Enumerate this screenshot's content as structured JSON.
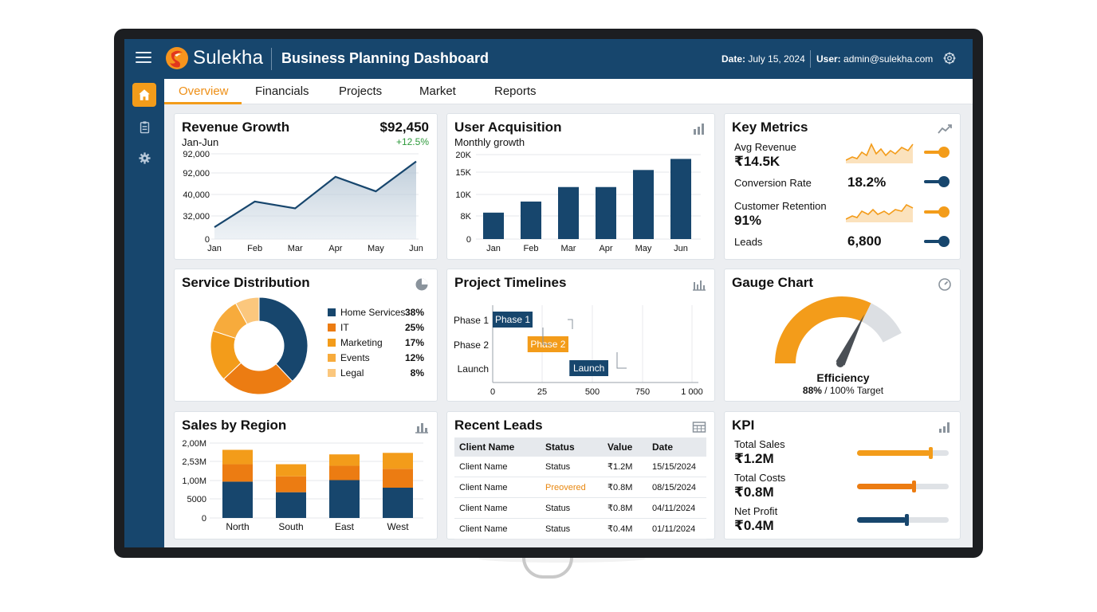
{
  "header": {
    "brand": "Sulekha",
    "title": "Business Planning Dashboard",
    "date_label": "Date:",
    "date_value": "July 15, 2024",
    "user_label": "User:",
    "user_value": "admin@sulekha.com",
    "brand_colors": [
      "#f7941d",
      "#e2371c"
    ]
  },
  "sidebar": {
    "items": [
      {
        "name": "home",
        "icon": "home-icon",
        "active": true
      },
      {
        "name": "reports",
        "icon": "clipboard-icon",
        "active": false
      },
      {
        "name": "settings",
        "icon": "gear-icon",
        "active": false
      }
    ]
  },
  "tabs": [
    "Overview",
    "Financials",
    "Projects",
    "Market",
    "Reports"
  ],
  "active_tab": "Overview",
  "revenue": {
    "title": "Revenue Growth",
    "subtitle": "Jan-Jun",
    "total": "$92,450",
    "change": "+12.5%"
  },
  "acquisition": {
    "title": "User Acquisition",
    "subtitle": "Monthly growth"
  },
  "key_metrics": {
    "title": "Key Metrics",
    "items": [
      {
        "label": "Avg Revenue",
        "value": "₹14.5K",
        "color": "#f39c1a"
      },
      {
        "label": "Conversion Rate",
        "value": "18.2%",
        "color": "#17466d"
      },
      {
        "label": "Customer Retention",
        "value": "91%",
        "color": "#f39c1a"
      },
      {
        "label": "Leads",
        "value": "6,800",
        "color": "#17466d"
      }
    ]
  },
  "service": {
    "title": "Service Distribution"
  },
  "timelines": {
    "title": "Project Timelines"
  },
  "gauge": {
    "title": "Gauge Chart",
    "label": "Efficiency",
    "value_text": "88%",
    "target_text": " / 100% Target",
    "value": 88,
    "max": 100
  },
  "sales_region": {
    "title": "Sales by Region"
  },
  "leads": {
    "title": "Recent Leads",
    "columns": [
      "Client Name",
      "Status",
      "Value",
      "Date"
    ],
    "rows": [
      {
        "client": "Client Name",
        "status": "Status",
        "value": "₹1.2M",
        "date": "15/15/2024"
      },
      {
        "client": "Client Name",
        "status": "Preovered",
        "value": "₹0.8M",
        "date": "08/15/2024"
      },
      {
        "client": "Client Name",
        "status": "Status",
        "value": "₹0.8M",
        "date": "04/11/2024"
      },
      {
        "client": "Client Name",
        "status": "Status",
        "value": "₹0.4M",
        "date": "01/11/2024"
      }
    ],
    "highlight_status_color": "#e8870f"
  },
  "kpi": {
    "title": "KPI",
    "items": [
      {
        "label": "Total Sales",
        "value": "₹1.2M",
        "level": 0.8,
        "color": "#f39c1a"
      },
      {
        "label": "Total Costs",
        "value": "₹0.8M",
        "level": 0.62,
        "color": "#ec7c12"
      },
      {
        "label": "Net Profit",
        "value": "₹0.4M",
        "level": 0.54,
        "color": "#17466d"
      }
    ]
  },
  "chart_data": [
    {
      "type": "area",
      "categories": [
        "Jan",
        "Feb",
        "Mar",
        "Apr",
        "May",
        "Jun"
      ],
      "y_tick_labels": [
        "0",
        "32,000",
        "40,000",
        "92,000",
        "92,000"
      ],
      "values_fraction_of_axis": [
        0.14,
        0.44,
        0.36,
        0.73,
        0.56,
        0.91
      ],
      "color": "#17466d"
    },
    {
      "type": "bar",
      "categories": [
        "Jan",
        "Feb",
        "Mar",
        "Apr",
        "May",
        "Jun"
      ],
      "y_tick_labels": [
        "0",
        "8K",
        "10K",
        "15K",
        "20K"
      ],
      "values_fraction_of_axis": [
        0.31,
        0.44,
        0.61,
        0.61,
        0.81,
        0.94
      ],
      "color": "#17466d"
    },
    {
      "type": "pie",
      "donut": true,
      "slices": [
        {
          "name": "Home Services",
          "value": 38,
          "label": "38%",
          "color": "#17466d"
        },
        {
          "name": "IT",
          "value": 25,
          "label": "25%",
          "color": "#ec7c12"
        },
        {
          "name": "Marketing",
          "value": 17,
          "label": "17%",
          "color": "#f39c1a"
        },
        {
          "name": "Events",
          "value": 12,
          "label": "12%",
          "color": "#f7ab3c"
        },
        {
          "name": "Legal",
          "value": 8,
          "label": "8%",
          "color": "#fbc77d"
        }
      ]
    },
    {
      "type": "gantt",
      "tasks": [
        {
          "name": "Phase 1",
          "start": 0,
          "end": 200,
          "color": "#17466d"
        },
        {
          "name": "Phase 2",
          "start": 175,
          "end": 380,
          "color": "#f39c1a"
        },
        {
          "name": "Launch",
          "start": 385,
          "end": 580,
          "color": "#17466d"
        }
      ],
      "x_tick_labels": [
        "0",
        "25",
        "500",
        "750",
        "1 000"
      ]
    },
    {
      "type": "bar",
      "stacked": true,
      "categories": [
        "North",
        "South",
        "East",
        "West"
      ],
      "y_tick_labels": [
        "0",
        "5000",
        "1,00M",
        "2,53M",
        "2,00M"
      ],
      "series_colors": [
        "#17466d",
        "#ec7c12",
        "#f39c1a"
      ],
      "segments_fraction_of_axis": [
        [
          0.48,
          0.23,
          0.19
        ],
        [
          0.34,
          0.21,
          0.16
        ],
        [
          0.5,
          0.19,
          0.15
        ],
        [
          0.4,
          0.25,
          0.21
        ]
      ]
    }
  ]
}
